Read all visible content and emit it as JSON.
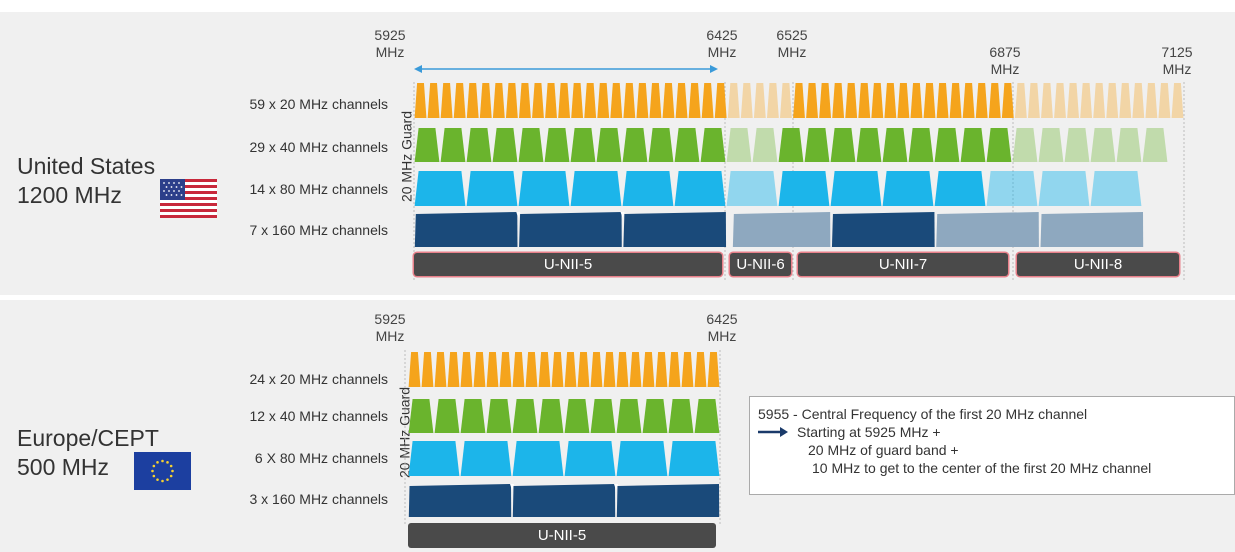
{
  "us": {
    "region_line1": "United States",
    "region_line2": "1200 MHz",
    "freqs": [
      {
        "v": "5925",
        "u": "MHz"
      },
      {
        "v": "6425",
        "u": "MHz"
      },
      {
        "v": "6525",
        "u": "MHz"
      },
      {
        "v": "6875",
        "u": "MHz"
      },
      {
        "v": "7125",
        "u": "MHz"
      }
    ],
    "rows": [
      "59 x 20 MHz channels",
      "29 x 40 MHz channels",
      "14 x 80 MHz channels",
      "7 x 160 MHz channels"
    ],
    "guard": "20 MHz Guard",
    "bands": [
      "U-NII-5",
      "U-NII-6",
      "U-NII-7",
      "U-NII-8"
    ]
  },
  "eu": {
    "region_line1": "Europe/CEPT",
    "region_line2": "500 MHz",
    "freqs": [
      {
        "v": "5925",
        "u": "MHz"
      },
      {
        "v": "6425",
        "u": "MHz"
      }
    ],
    "rows": [
      "24 x 20 MHz channels",
      "12 x 40 MHz channels",
      "6 X 80 MHz channels",
      "3 x 160 MHz channels"
    ],
    "guard": "20 MHz Guard",
    "bands": [
      "U-NII-5"
    ]
  },
  "note": {
    "line1": "5955 - Central Frequency of the first 20 MHz channel",
    "line2": "Starting at 5925 MHz +",
    "line3": "20 MHz of guard band +",
    "line4": "10 MHz to get to the center of the first 20 MHz channel"
  },
  "colors": {
    "ch20": "#f5a41c",
    "ch40": "#6ab42d",
    "ch80": "#1cb5ea",
    "ch160": "#1a4a7a",
    "unii_bar": "#4a4a4a",
    "band_bg": "#f0f0f0",
    "arrow": "#3a9ad9"
  }
}
